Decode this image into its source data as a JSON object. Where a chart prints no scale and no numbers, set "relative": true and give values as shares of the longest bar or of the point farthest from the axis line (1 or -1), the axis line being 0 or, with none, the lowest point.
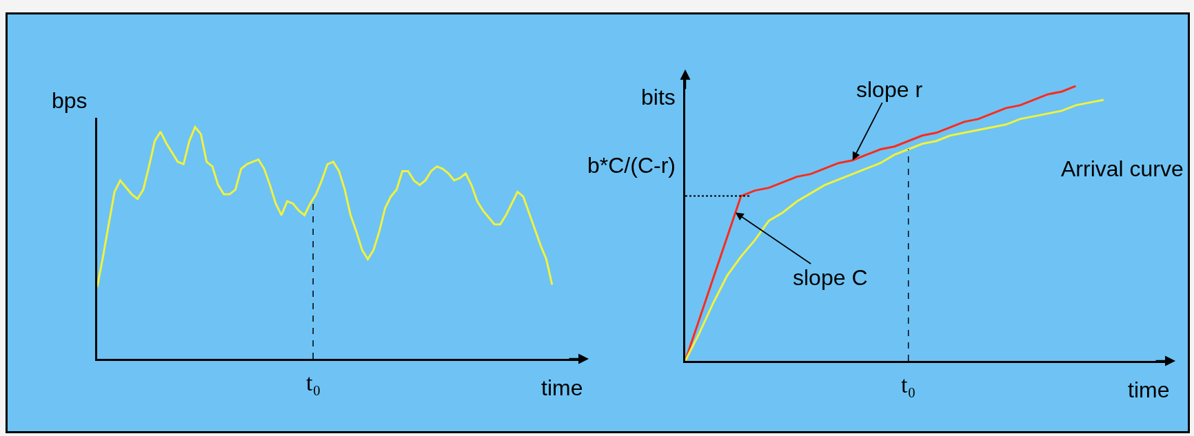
{
  "chart_data": [
    {
      "type": "line",
      "relative": true,
      "xlabel": "time",
      "ylabel": "bps",
      "categories": [
        null,
        null,
        null,
        null,
        null,
        null,
        null,
        null,
        null,
        null,
        null,
        null,
        null,
        null,
        null,
        null,
        null,
        null,
        null,
        null,
        null,
        null,
        null,
        null,
        null,
        null,
        null,
        null,
        null,
        null,
        null,
        null,
        null,
        null,
        null,
        null,
        null,
        null,
        null,
        null,
        null,
        null,
        null,
        null,
        null,
        null,
        null,
        null,
        null,
        null,
        null,
        null,
        null,
        null,
        null,
        null,
        null,
        null,
        null,
        null,
        null,
        null,
        null,
        null,
        null,
        null,
        null,
        null,
        null,
        null,
        null,
        null,
        null,
        null,
        null,
        null,
        null,
        null,
        null,
        null
      ],
      "series": [
        {
          "color": "#f2f23c",
          "values": [
            0.31,
            0.44,
            0.58,
            0.72,
            0.77,
            0.74,
            0.71,
            0.69,
            0.73,
            0.83,
            0.94,
            0.98,
            0.93,
            0.89,
            0.85,
            0.84,
            0.94,
            1,
            0.97,
            0.85,
            0.83,
            0.75,
            0.71,
            0.71,
            0.73,
            0.82,
            0.84,
            0.85,
            0.86,
            0.82,
            0.75,
            0.67,
            0.62,
            0.68,
            0.67,
            0.64,
            0.62,
            0.67,
            0.71,
            0.77,
            0.84,
            0.85,
            0.81,
            0.73,
            0.62,
            0.55,
            0.47,
            0.43,
            0.47,
            0.55,
            0.65,
            0.7,
            0.73,
            0.81,
            0.81,
            0.77,
            0.75,
            0.77,
            0.81,
            0.83,
            0.82,
            0.8,
            0.77,
            0.78,
            0.8,
            0.75,
            0.68,
            0.64,
            0.61,
            0.58,
            0.58,
            0.62,
            0.67,
            0.72,
            0.7,
            0.63,
            0.56,
            0.49,
            0.43,
            0.32
          ]
        }
      ],
      "annotations": [
        "t₀"
      ]
    },
    {
      "type": "line",
      "relative": true,
      "xlabel": "time",
      "ylabel": "bits",
      "categories": [
        null,
        null,
        null,
        null,
        null,
        null,
        null,
        null,
        null,
        null,
        null,
        null,
        null,
        null,
        null,
        null,
        null,
        null,
        null,
        null,
        null,
        null,
        null,
        null,
        null,
        null,
        null,
        null,
        null,
        null,
        null
      ],
      "series": [
        {
          "color": "#ff2a1a",
          "values": [
            0,
            0.15,
            0.3,
            0.45,
            0.6,
            0.62,
            0.63,
            0.65,
            0.67,
            0.68,
            0.7,
            0.72,
            0.73,
            0.75,
            0.77,
            0.78,
            0.8,
            0.82,
            0.83,
            0.85,
            0.87,
            0.88,
            0.9,
            0.92,
            0.93,
            0.95,
            0.97,
            0.98,
            1,
            null,
            null
          ]
        },
        {
          "color": "#f2f23c",
          "values": [
            0,
            0.1,
            0.21,
            0.31,
            0.38,
            0.44,
            0.51,
            0.54,
            0.58,
            0.61,
            0.64,
            0.66,
            0.68,
            0.7,
            0.72,
            0.75,
            0.77,
            0.79,
            0.8,
            0.82,
            0.83,
            0.84,
            0.85,
            0.86,
            0.88,
            0.89,
            0.9,
            0.91,
            0.93,
            0.94,
            0.95
          ]
        }
      ],
      "ref_lines": [
        {
          "axis": "y",
          "value": 0.6,
          "label": "b*C/(C-r)",
          "line_style": "dotted"
        }
      ],
      "annotations": [
        {
          "text": "slope r",
          "y": 0.73
        },
        "slope C",
        "Arrival curve",
        "t₀"
      ]
    }
  ]
}
